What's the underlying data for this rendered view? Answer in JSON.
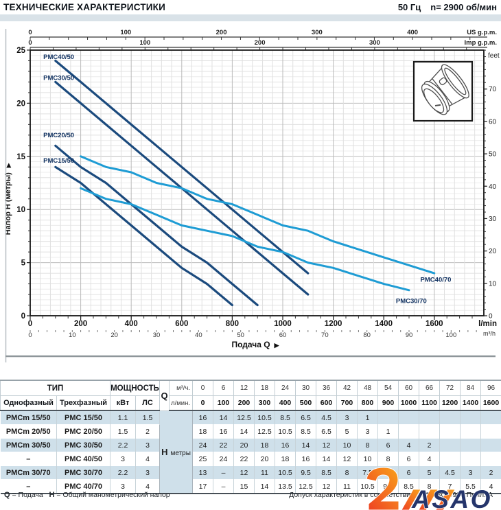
{
  "header": {
    "title": "ТЕХНИЧЕСКИЕ ХАРАКТЕРИСТИКИ",
    "frequency": "50 Гц",
    "speed": "n= 2900 об/мин"
  },
  "chart_data": {
    "type": "line",
    "xlabel": "Подача Q",
    "xlabel_arrow": "▶",
    "ylabel": "Напор H (метры)",
    "ylabel_arrow": "▶",
    "x_range_lmin": [
      0,
      1800
    ],
    "y_range_m": [
      0,
      25
    ],
    "colors": {
      "dark_series": "#1b4a7d",
      "light_series": "#1e9cd4",
      "series_label": "#0e2f5f",
      "grid_minor": "#ececec",
      "grid_mid": "#e0e0e0",
      "grid_major": "#bbbbbb",
      "plot_border": "#161616"
    },
    "axes": {
      "us_gpm": {
        "label": "US g.p.m.",
        "labeled_ticks": [
          0,
          100,
          200,
          300,
          400
        ],
        "minor_step": 20,
        "lmin_per_unit": 3.785
      },
      "imp_gpm": {
        "label": "Imp g.p.m.",
        "labeled_ticks": [
          0,
          100,
          200,
          300
        ],
        "minor_step": 20,
        "lmin_per_unit": 4.546
      },
      "lmin": {
        "label": "l/min",
        "labeled_ticks": [
          0,
          200,
          400,
          600,
          800,
          1000,
          1200,
          1400,
          1600
        ],
        "minor_step": 50
      },
      "m3h": {
        "label": "m³/h",
        "labeled_ticks": [
          0,
          10,
          20,
          30,
          40,
          50,
          60,
          70,
          80,
          90,
          100
        ],
        "minor_step": 2,
        "lmin_per_unit": 16.6667
      },
      "meters": {
        "labeled_ticks": [
          0,
          5,
          10,
          15,
          20,
          25
        ],
        "minor_step": 1
      },
      "feet": {
        "label": "feet",
        "labeled_ticks": [
          0,
          10,
          20,
          30,
          40,
          50,
          60,
          70
        ],
        "minor_step": 2,
        "m_per_unit": 0.3048
      }
    },
    "series": [
      {
        "name": "PMC40/50",
        "group": "dark",
        "points": [
          [
            100,
            24
          ],
          [
            200,
            22
          ],
          [
            300,
            20
          ],
          [
            400,
            18
          ],
          [
            500,
            16
          ],
          [
            600,
            14
          ],
          [
            700,
            12
          ],
          [
            800,
            10
          ],
          [
            900,
            8
          ],
          [
            1000,
            6
          ],
          [
            1100,
            4
          ]
        ],
        "label_q": 52,
        "label_h": 24.15
      },
      {
        "name": "PMC30/50",
        "group": "dark",
        "points": [
          [
            100,
            22
          ],
          [
            200,
            20
          ],
          [
            300,
            18
          ],
          [
            400,
            16
          ],
          [
            500,
            14
          ],
          [
            600,
            12
          ],
          [
            700,
            10
          ],
          [
            800,
            8
          ],
          [
            900,
            6
          ],
          [
            1000,
            4
          ],
          [
            1100,
            2
          ]
        ],
        "label_q": 52,
        "label_h": 22.2
      },
      {
        "name": "PMC20/50",
        "group": "dark",
        "points": [
          [
            100,
            16
          ],
          [
            200,
            14
          ],
          [
            300,
            12.5
          ],
          [
            400,
            10.5
          ],
          [
            500,
            8.5
          ],
          [
            600,
            6.5
          ],
          [
            700,
            5
          ],
          [
            800,
            3
          ],
          [
            900,
            1
          ]
        ],
        "label_q": 52,
        "label_h": 16.8
      },
      {
        "name": "PMC15/50",
        "group": "dark",
        "points": [
          [
            100,
            14
          ],
          [
            200,
            12.5
          ],
          [
            300,
            10.5
          ],
          [
            400,
            8.5
          ],
          [
            500,
            6.5
          ],
          [
            600,
            4.5
          ],
          [
            700,
            3
          ],
          [
            800,
            1
          ]
        ],
        "label_q": 52,
        "label_h": 14.4
      },
      {
        "name": "PMC40/70",
        "group": "light",
        "points": [
          [
            200,
            15
          ],
          [
            300,
            14
          ],
          [
            400,
            13.5
          ],
          [
            500,
            12.5
          ],
          [
            600,
            12
          ],
          [
            700,
            11
          ],
          [
            800,
            10.5
          ],
          [
            900,
            9.5
          ],
          [
            1000,
            8.5
          ],
          [
            1100,
            8
          ],
          [
            1200,
            7
          ],
          [
            1400,
            5.5
          ],
          [
            1600,
            4
          ]
        ],
        "label_q": 1545,
        "label_h": 3.2
      },
      {
        "name": "PMC30/70",
        "group": "light",
        "points": [
          [
            200,
            12
          ],
          [
            300,
            11
          ],
          [
            400,
            10.5
          ],
          [
            500,
            9.5
          ],
          [
            600,
            8.5
          ],
          [
            700,
            8
          ],
          [
            800,
            7.5
          ],
          [
            900,
            6.5
          ],
          [
            1000,
            6
          ],
          [
            1100,
            5
          ],
          [
            1200,
            4.5
          ],
          [
            1400,
            3
          ],
          [
            1500,
            2.4
          ]
        ],
        "label_q": 1448,
        "label_h": 1.2
      }
    ]
  },
  "table": {
    "header": {
      "type_label": "ТИП",
      "power_label": "МОЩНОСТЬ",
      "single_phase": "Однофазный",
      "three_phase": "Трехфазный",
      "kw": "кВт",
      "hp": "ЛС",
      "q_label": "Q",
      "m3h_label": "м³/ч.",
      "lmin_label": "л/мин.",
      "m3h_values": [
        "0",
        "6",
        "12",
        "18",
        "24",
        "30",
        "36",
        "42",
        "48",
        "54",
        "60",
        "66",
        "72",
        "84",
        "96"
      ],
      "lmin_values": [
        "0",
        "100",
        "200",
        "300",
        "400",
        "500",
        "600",
        "700",
        "800",
        "900",
        "1000",
        "1100",
        "1200",
        "1400",
        "1600"
      ]
    },
    "h_label": "H",
    "h_unit": "метры",
    "rows": [
      {
        "single": "PMCm 15/50",
        "three": "PMC 15/50",
        "kw": "1.1",
        "hp": "1.5",
        "h": [
          "16",
          "14",
          "12.5",
          "10.5",
          "8.5",
          "6.5",
          "4.5",
          "3",
          "1",
          "",
          "",
          "",
          "",
          "",
          ""
        ]
      },
      {
        "single": "PMCm 20/50",
        "three": "PMC 20/50",
        "kw": "1.5",
        "hp": "2",
        "h": [
          "18",
          "16",
          "14",
          "12.5",
          "10.5",
          "8.5",
          "6.5",
          "5",
          "3",
          "1",
          "",
          "",
          "",
          "",
          ""
        ]
      },
      {
        "single": "PMCm 30/50",
        "three": "PMC 30/50",
        "kw": "2.2",
        "hp": "3",
        "h": [
          "24",
          "22",
          "20",
          "18",
          "16",
          "14",
          "12",
          "10",
          "8",
          "6",
          "4",
          "2",
          "",
          "",
          ""
        ]
      },
      {
        "single": "–",
        "three": "PMC 40/50",
        "kw": "3",
        "hp": "4",
        "h": [
          "25",
          "24",
          "22",
          "20",
          "18",
          "16",
          "14",
          "12",
          "10",
          "8",
          "6",
          "4",
          "",
          "",
          ""
        ]
      },
      {
        "single": "PMCm 30/70",
        "three": "PMC 30/70",
        "kw": "2.2",
        "hp": "3",
        "h": [
          "13",
          "–",
          "12",
          "11",
          "10.5",
          "9.5",
          "8.5",
          "8",
          "7.5",
          "6.5",
          "6",
          "5",
          "4.5",
          "3",
          "2"
        ]
      },
      {
        "single": "–",
        "three": "PMC 40/70",
        "kw": "3",
        "hp": "4",
        "h": [
          "17",
          "–",
          "15",
          "14",
          "13.5",
          "12.5",
          "12",
          "11",
          "10.5",
          "9.5",
          "8.5",
          "8",
          "7",
          "5.5",
          "4"
        ]
      }
    ]
  },
  "footer": {
    "q_key": "Q",
    "q_val": "= Подача",
    "h_key": "H",
    "h_val": "= Общий манометрический напор",
    "tolerance": "Допуск характеристик в соответствии с EN ISO 9906 Прил. A"
  },
  "logo": {
    "text": "ASAO",
    "navy": "#25356b",
    "orange": "#f05a22"
  }
}
